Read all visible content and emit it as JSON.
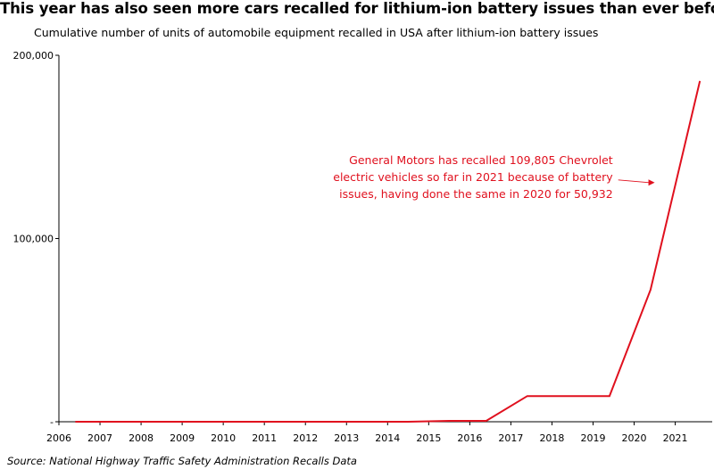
{
  "chart_data": {
    "type": "line",
    "title": "This year has also seen more cars recalled for lithium-ion battery issues than ever before",
    "subtitle": "Cumulative number of units of automobile equipment recalled in USA after lithium-ion battery issues",
    "xlabel": "",
    "ylabel": "",
    "xlim": [
      2006,
      2021.9
    ],
    "ylim": [
      0,
      200000
    ],
    "x_ticks": [
      "2006",
      "2007",
      "2008",
      "2009",
      "2010",
      "2011",
      "2012",
      "2013",
      "2014",
      "2015",
      "2016",
      "2017",
      "2018",
      "2019",
      "2020",
      "2021"
    ],
    "y_ticks": [
      {
        "value": 0,
        "label": "-"
      },
      {
        "value": 100000,
        "label": "100,000"
      },
      {
        "value": 200000,
        "label": "200,000"
      }
    ],
    "grid": false,
    "series": [
      {
        "color": "#e0101e",
        "x": [
          2006.4,
          2014.5,
          2015.5,
          2016.4,
          2017.4,
          2019.4,
          2020.4,
          2021.6
        ],
        "values": [
          0,
          0,
          500,
          500,
          14000,
          14000,
          72000,
          186000
        ]
      }
    ],
    "annotation": {
      "lines": [
        "General Motors has recalled 109,805 Chevrolet",
        "electric vehicles so far in 2021 because of battery",
        "issues, having done the same in 2020 for 50,932"
      ],
      "color": "#e0101e",
      "arrow_from": [
        2019.7,
        131000
      ],
      "arrow_to": [
        2020.5,
        131000
      ]
    },
    "source": "Source: National Highway Traffic Safety Administration Recalls Data"
  }
}
